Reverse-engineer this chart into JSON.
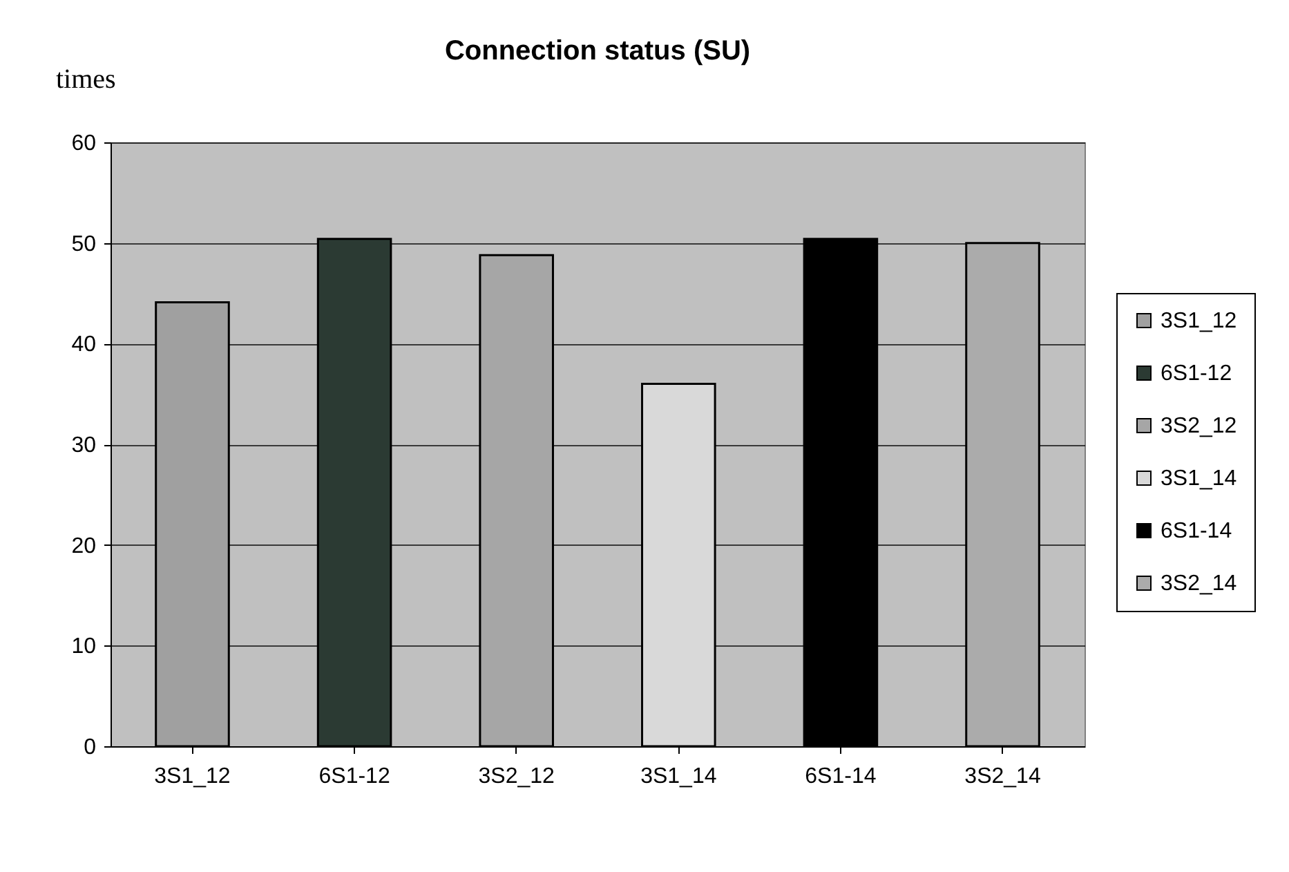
{
  "chart_data": {
    "type": "bar",
    "title": "Connection status (SU)",
    "ylabel": "times",
    "categories": [
      "3S1_12",
      "6S1-12",
      "3S2_12",
      "3S1_14",
      "6S1-14",
      "3S2_14"
    ],
    "series": [
      {
        "name": "3S1_12",
        "color": "#a0a0a0",
        "values": [
          44.1,
          null,
          null,
          null,
          null,
          null
        ]
      },
      {
        "name": "6S1-12",
        "color": "#2b3a33",
        "values": [
          null,
          50.4,
          null,
          null,
          null,
          null
        ]
      },
      {
        "name": "3S2_12",
        "color": "#a6a6a6",
        "values": [
          null,
          null,
          48.8,
          null,
          null,
          null
        ]
      },
      {
        "name": "3S1_14",
        "color": "#d9d9d9",
        "values": [
          null,
          null,
          null,
          36.0,
          null,
          null
        ]
      },
      {
        "name": "6S1-14",
        "color": "#000000",
        "values": [
          null,
          null,
          null,
          null,
          50.4,
          null
        ]
      },
      {
        "name": "3S2_14",
        "color": "#ababab",
        "values": [
          null,
          null,
          null,
          null,
          null,
          50.0
        ]
      }
    ],
    "ylim": [
      0,
      60
    ],
    "yticks": [
      0,
      10,
      20,
      30,
      40,
      50,
      60
    ],
    "grid": "y",
    "legend": "right"
  }
}
